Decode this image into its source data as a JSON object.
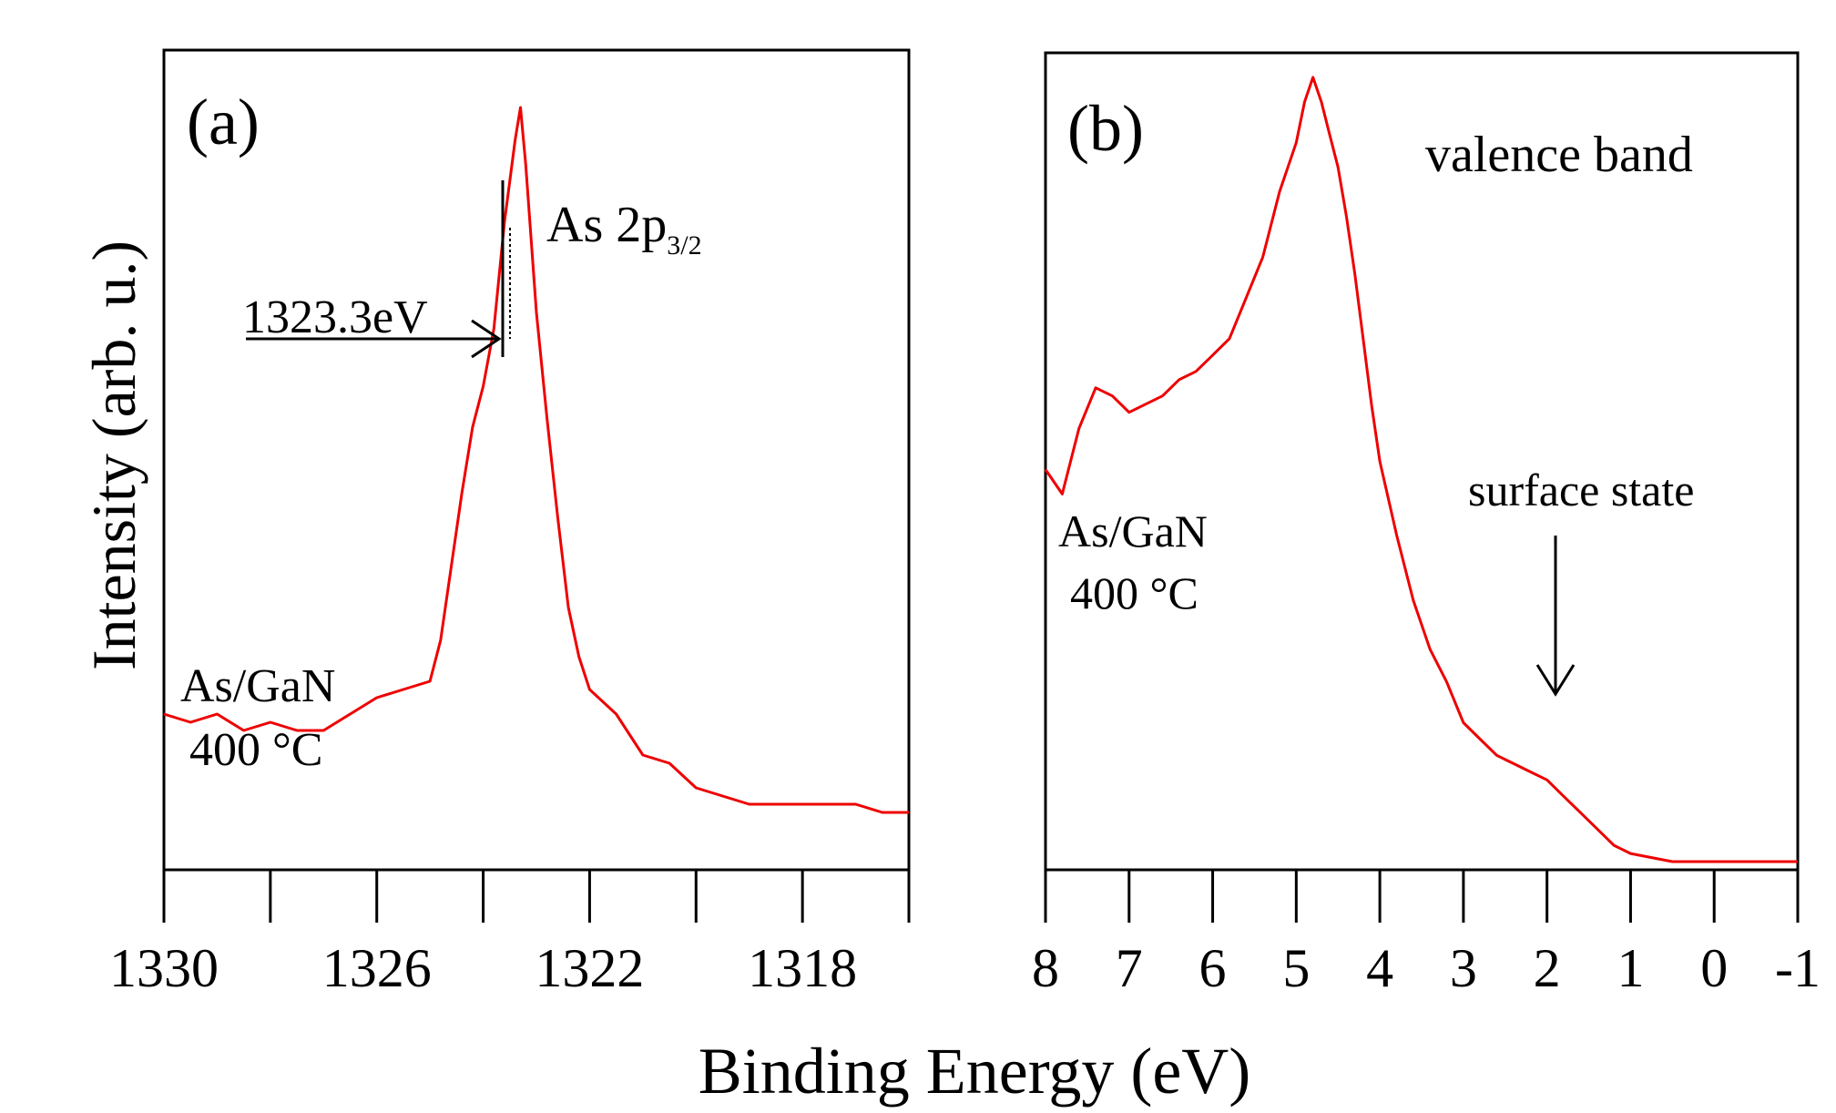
{
  "figure": {
    "ylabel": "Intensity (arb. u.)",
    "xlabel": "Binding Energy (eV)",
    "series_color": "#ee0000"
  },
  "chart_data": [
    {
      "type": "line",
      "panel_label": "(a)",
      "title": "As 2p",
      "title_subscript": "3/2",
      "xlabel": "Binding Energy (eV)",
      "ylabel": "Intensity (arb. u.)",
      "xlim": [
        1330,
        1316
      ],
      "ylim": [
        0,
        100
      ],
      "x_reversed": true,
      "xticks": [
        1330,
        1328,
        1326,
        1324,
        1322,
        1320,
        1318,
        1316
      ],
      "xtick_labels": [
        "1330",
        "1326",
        "1322",
        "1318"
      ],
      "xtick_label_values": [
        1330,
        1326,
        1322,
        1318
      ],
      "peak_position": 1323.3,
      "peak_annotation": "1323.3eV",
      "sample_label": "As/GaN",
      "temperature_label": "400 °C",
      "series": [
        {
          "name": "As/GaN 400 °C",
          "x": [
            1330,
            1329.5,
            1329,
            1328.5,
            1328,
            1327.5,
            1327,
            1326.5,
            1326,
            1325.5,
            1325,
            1324.8,
            1324.6,
            1324.4,
            1324.2,
            1324,
            1323.8,
            1323.6,
            1323.4,
            1323.3,
            1323.2,
            1323,
            1322.8,
            1322.6,
            1322.4,
            1322.2,
            1322,
            1321.5,
            1321,
            1320.5,
            1320,
            1319.5,
            1319,
            1318.5,
            1318,
            1317.5,
            1317,
            1316.5,
            1316
          ],
          "y": [
            19,
            18,
            19,
            17,
            18,
            17,
            17,
            19,
            21,
            22,
            23,
            28,
            37,
            46,
            54,
            59,
            66,
            79,
            89,
            93,
            86,
            68,
            55,
            43,
            32,
            26,
            22,
            19,
            14,
            13,
            10,
            9,
            8,
            8,
            8,
            8,
            8,
            7,
            7
          ]
        }
      ]
    },
    {
      "type": "line",
      "panel_label": "(b)",
      "title": "valence band",
      "xlabel": "Binding Energy (eV)",
      "ylabel": "Intensity (arb. u.)",
      "xlim": [
        8,
        -1
      ],
      "ylim": [
        0,
        100
      ],
      "x_reversed": true,
      "xticks": [
        8,
        7,
        6,
        5,
        4,
        3,
        2,
        1,
        0,
        -1
      ],
      "xtick_labels": [
        "8",
        "7",
        "6",
        "5",
        "4",
        "3",
        "2",
        "1",
        "0",
        "-1"
      ],
      "annotation": "surface state",
      "annotation_x": 1.9,
      "sample_label": "As/GaN",
      "temperature_label": "400 °C",
      "series": [
        {
          "name": "As/GaN 400 °C",
          "x": [
            8,
            7.8,
            7.6,
            7.4,
            7.2,
            7,
            6.8,
            6.6,
            6.4,
            6.2,
            6,
            5.8,
            5.6,
            5.4,
            5.2,
            5,
            4.9,
            4.8,
            4.7,
            4.6,
            4.5,
            4.4,
            4.3,
            4.2,
            4.1,
            4,
            3.8,
            3.6,
            3.4,
            3.2,
            3,
            2.8,
            2.6,
            2.4,
            2.2,
            2,
            1.8,
            1.6,
            1.4,
            1.2,
            1,
            0.5,
            0,
            -0.5,
            -1
          ],
          "y": [
            49,
            46,
            54,
            59,
            58,
            56,
            57,
            58,
            60,
            61,
            63,
            65,
            70,
            75,
            83,
            89,
            94,
            97,
            94,
            90,
            86,
            80,
            73,
            65,
            57,
            50,
            41,
            33,
            27,
            23,
            18,
            16,
            14,
            13,
            12,
            11,
            9,
            7,
            5,
            3,
            2,
            1,
            1,
            1,
            1
          ]
        }
      ]
    }
  ]
}
